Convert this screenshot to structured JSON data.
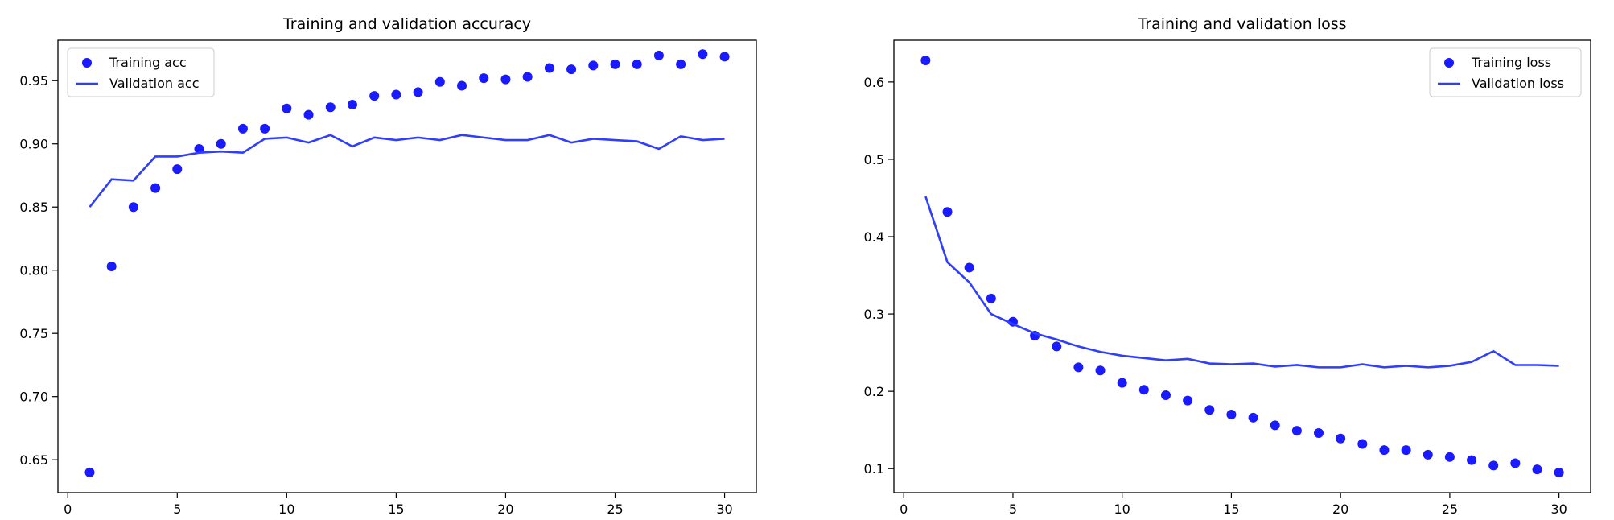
{
  "chart_data": [
    {
      "type": "line",
      "title": "Training and validation accuracy",
      "xlabel": "",
      "ylabel": "",
      "xlim": [
        -0.45,
        31.45
      ],
      "ylim": [
        0.624,
        0.982
      ],
      "xticks": [
        0,
        5,
        10,
        15,
        20,
        25,
        30
      ],
      "yticks": [
        0.65,
        0.7,
        0.75,
        0.8,
        0.85,
        0.9,
        0.95
      ],
      "ytick_labels": [
        "0.65",
        "0.70",
        "0.75",
        "0.80",
        "0.85",
        "0.90",
        "0.95"
      ],
      "legend_position": "upper left",
      "grid": false,
      "x": [
        1,
        2,
        3,
        4,
        5,
        6,
        7,
        8,
        9,
        10,
        11,
        12,
        13,
        14,
        15,
        16,
        17,
        18,
        19,
        20,
        21,
        22,
        23,
        24,
        25,
        26,
        27,
        28,
        29,
        30
      ],
      "series": [
        {
          "name": "Training acc",
          "style": "markers",
          "color": "#1a1aff",
          "values": [
            0.64,
            0.803,
            0.85,
            0.865,
            0.88,
            0.896,
            0.9,
            0.912,
            0.912,
            0.928,
            0.923,
            0.929,
            0.931,
            0.938,
            0.939,
            0.941,
            0.949,
            0.946,
            0.952,
            0.951,
            0.953,
            0.96,
            0.959,
            0.962,
            0.963,
            0.963,
            0.97,
            0.963,
            0.971,
            0.969
          ]
        },
        {
          "name": "Validation acc",
          "style": "line",
          "color": "#2f3dff",
          "values": [
            0.85,
            0.872,
            0.871,
            0.89,
            0.89,
            0.893,
            0.894,
            0.893,
            0.904,
            0.905,
            0.901,
            0.907,
            0.898,
            0.905,
            0.903,
            0.905,
            0.903,
            0.907,
            0.905,
            0.903,
            0.903,
            0.907,
            0.901,
            0.904,
            0.903,
            0.902,
            0.896,
            0.906,
            0.903,
            0.904
          ]
        }
      ]
    },
    {
      "type": "line",
      "title": "Training and validation loss",
      "xlabel": "",
      "ylabel": "",
      "xlim": [
        -0.45,
        31.45
      ],
      "ylim": [
        0.069,
        0.654
      ],
      "xticks": [
        0,
        5,
        10,
        15,
        20,
        25,
        30
      ],
      "yticks": [
        0.1,
        0.2,
        0.3,
        0.4,
        0.5,
        0.6
      ],
      "ytick_labels": [
        "0.1",
        "0.2",
        "0.3",
        "0.4",
        "0.5",
        "0.6"
      ],
      "legend_position": "upper right",
      "grid": false,
      "x": [
        1,
        2,
        3,
        4,
        5,
        6,
        7,
        8,
        9,
        10,
        11,
        12,
        13,
        14,
        15,
        16,
        17,
        18,
        19,
        20,
        21,
        22,
        23,
        24,
        25,
        26,
        27,
        28,
        29,
        30
      ],
      "series": [
        {
          "name": "Training loss",
          "style": "markers",
          "color": "#1a1aff",
          "values": [
            0.628,
            0.432,
            0.36,
            0.32,
            0.29,
            0.272,
            0.258,
            0.231,
            0.227,
            0.211,
            0.202,
            0.195,
            0.188,
            0.176,
            0.17,
            0.166,
            0.156,
            0.149,
            0.146,
            0.139,
            0.132,
            0.124,
            0.124,
            0.118,
            0.115,
            0.111,
            0.104,
            0.107,
            0.099,
            0.095
          ]
        },
        {
          "name": "Validation loss",
          "style": "line",
          "color": "#2f3dff",
          "values": [
            0.452,
            0.367,
            0.341,
            0.3,
            0.287,
            0.275,
            0.267,
            0.258,
            0.251,
            0.246,
            0.243,
            0.24,
            0.242,
            0.236,
            0.235,
            0.236,
            0.232,
            0.234,
            0.231,
            0.231,
            0.235,
            0.231,
            0.233,
            0.231,
            0.233,
            0.238,
            0.252,
            0.234,
            0.234,
            0.233
          ]
        }
      ]
    }
  ]
}
